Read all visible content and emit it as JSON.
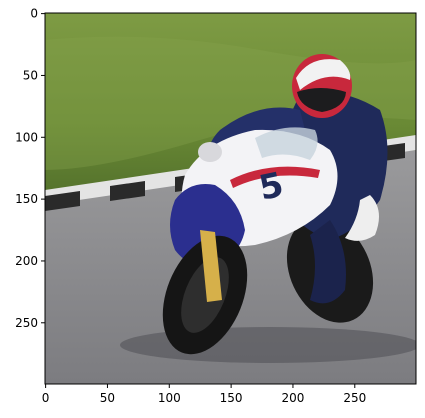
{
  "image": {
    "subject": "motorcycle-racer-leaning-into-corner",
    "bike_number": "5",
    "colors": {
      "grass": "#6f8f3a",
      "road": "#8b8b8b",
      "curb_dark": "#2a2a2a",
      "curb_light": "#e6e6e6",
      "fairing_white": "#f3f3f6",
      "fairing_blue": "#2b2f8f",
      "helmet_red": "#c8283c",
      "suit_navy": "#1f2a5a",
      "tire": "#151515"
    }
  },
  "axes": {
    "x_ticks": [
      "0",
      "50",
      "100",
      "150",
      "200",
      "250"
    ],
    "y_ticks": [
      "0",
      "50",
      "100",
      "150",
      "200",
      "250"
    ]
  }
}
